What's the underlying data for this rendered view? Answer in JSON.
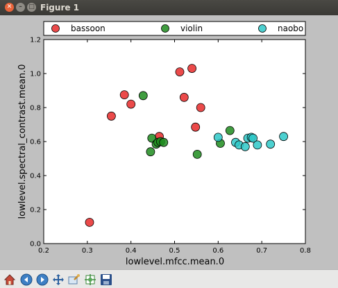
{
  "window": {
    "title": "Figure 1"
  },
  "toolbar": {
    "icons": [
      "home-icon",
      "back-icon",
      "forward-icon",
      "pan-icon",
      "zoom-icon",
      "subplots-icon",
      "save-icon"
    ]
  },
  "colors": {
    "bassoon": "#e82a2a",
    "violin": "#1f8c1f",
    "naobo": "#2ec8c8"
  },
  "chart_data": {
    "type": "scatter",
    "title": "",
    "xlabel": "lowlevel.mfcc.mean.0",
    "ylabel": "lowlevel.spectral_contrast.mean.0",
    "xlim": [
      0.2,
      0.8
    ],
    "ylim": [
      0.0,
      1.2
    ],
    "xticks": [
      "0.2",
      "0.3",
      "0.4",
      "0.5",
      "0.6",
      "0.7",
      "0.8"
    ],
    "yticks": [
      "0.0",
      "0.2",
      "0.4",
      "0.6",
      "0.8",
      "1.0",
      "1.2"
    ],
    "grid": false,
    "legend_position": "top",
    "series": [
      {
        "name": "bassoon",
        "points": [
          [
            0.305,
            0.125
          ],
          [
            0.355,
            0.75
          ],
          [
            0.385,
            0.875
          ],
          [
            0.4,
            0.82
          ],
          [
            0.465,
            0.63
          ],
          [
            0.512,
            1.01
          ],
          [
            0.522,
            0.86
          ],
          [
            0.54,
            1.03
          ],
          [
            0.548,
            0.685
          ],
          [
            0.56,
            0.8
          ]
        ]
      },
      {
        "name": "violin",
        "points": [
          [
            0.428,
            0.87
          ],
          [
            0.445,
            0.54
          ],
          [
            0.448,
            0.62
          ],
          [
            0.458,
            0.585
          ],
          [
            0.462,
            0.595
          ],
          [
            0.468,
            0.6
          ],
          [
            0.475,
            0.595
          ],
          [
            0.552,
            0.525
          ],
          [
            0.605,
            0.59
          ],
          [
            0.627,
            0.665
          ]
        ]
      },
      {
        "name": "naobo",
        "points": [
          [
            0.6,
            0.625
          ],
          [
            0.64,
            0.595
          ],
          [
            0.648,
            0.58
          ],
          [
            0.662,
            0.57
          ],
          [
            0.668,
            0.62
          ],
          [
            0.676,
            0.625
          ],
          [
            0.68,
            0.62
          ],
          [
            0.69,
            0.58
          ],
          [
            0.72,
            0.585
          ],
          [
            0.75,
            0.63
          ]
        ]
      }
    ]
  }
}
